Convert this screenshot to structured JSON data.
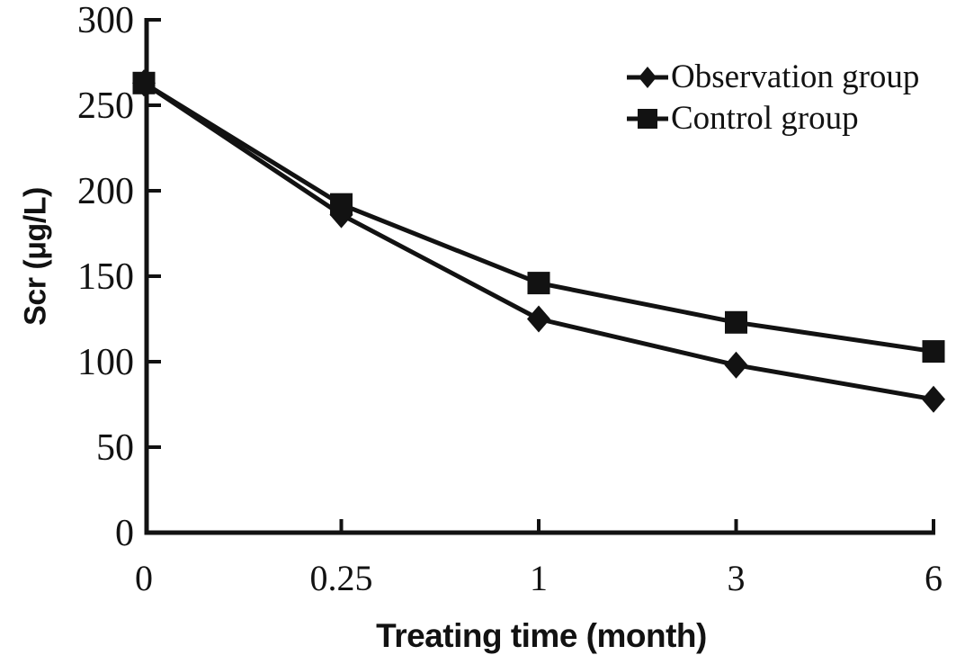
{
  "chart_data": {
    "type": "line",
    "title": "",
    "xlabel": "Treating time (month)",
    "ylabel": "Scr (μg/L)",
    "categories": [
      "0",
      "0.25",
      "1",
      "3",
      "6"
    ],
    "y_ticks": [
      0,
      50,
      100,
      150,
      200,
      250,
      300
    ],
    "y_tick_labels": [
      "0",
      "50",
      "100",
      "150",
      "200",
      "250",
      "300"
    ],
    "ylim": [
      0,
      300
    ],
    "grid": false,
    "legend_position": "top-right",
    "series": [
      {
        "name": "Observation group",
        "marker": "diamond",
        "values": [
          263,
          186,
          125,
          98,
          78
        ]
      },
      {
        "name": "Control group",
        "marker": "square",
        "values": [
          263,
          192,
          146,
          123,
          106
        ]
      }
    ],
    "colors": {
      "ink": "#121212",
      "background": "#ffffff"
    }
  }
}
